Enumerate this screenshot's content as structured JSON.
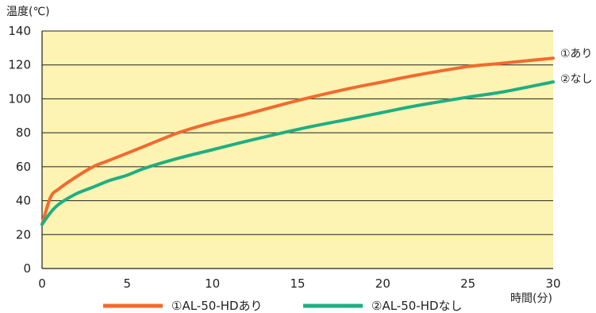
{
  "chart_data": {
    "type": "line",
    "title": "",
    "ylabel": "温度(℃)",
    "xlabel": "時間(分)",
    "xlim": [
      0,
      30
    ],
    "ylim": [
      0,
      140
    ],
    "xticks": [
      0,
      5,
      10,
      15,
      20,
      25,
      30
    ],
    "yticks": [
      0,
      20,
      40,
      60,
      80,
      100,
      120,
      140
    ],
    "grid": "horizontal",
    "plot_background": "#fdf3b3",
    "legend_position": "bottom",
    "x": [
      0,
      0.5,
      1,
      2,
      3,
      4,
      5,
      6,
      8,
      10,
      12,
      15,
      18,
      20,
      22,
      25,
      27,
      30
    ],
    "series": [
      {
        "name": "①AL-50-HDあり",
        "end_label": "①あり",
        "color": "#f26a2e",
        "values": [
          26,
          42,
          47,
          54,
          60,
          64,
          68,
          72,
          80,
          86,
          91,
          99,
          106,
          110,
          114,
          119,
          121,
          124
        ]
      },
      {
        "name": "②AL-50-HDなし",
        "end_label": "②なし",
        "color": "#1fae82",
        "values": [
          26,
          33,
          38,
          44,
          48,
          52,
          55,
          59,
          65,
          70,
          75,
          82,
          88,
          92,
          96,
          101,
          104,
          110
        ]
      }
    ]
  }
}
